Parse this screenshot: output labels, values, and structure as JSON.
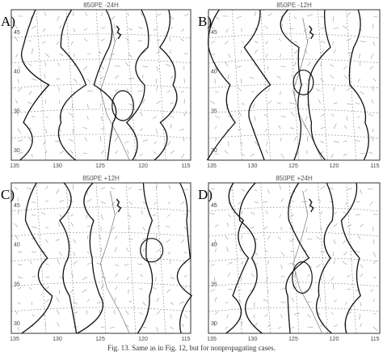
{
  "panels": [
    {
      "label": "A)",
      "title": "850PE -24H",
      "xticks": [
        135,
        130,
        125,
        120,
        115
      ],
      "yticks": [
        45,
        40,
        35,
        30
      ]
    },
    {
      "label": "B)",
      "title": "850PE -12H",
      "xticks": [
        135,
        130,
        125,
        120,
        115
      ],
      "yticks": [
        45,
        40,
        35,
        30
      ]
    },
    {
      "label": "C)",
      "title": "850PE +12H",
      "xticks": [
        135,
        130,
        125,
        120,
        115
      ],
      "yticks": [
        45,
        40,
        35,
        30
      ]
    },
    {
      "label": "D)",
      "title": "850PE +24H",
      "xticks": [
        135,
        130,
        125,
        120,
        115
      ],
      "yticks": [
        45,
        40,
        35,
        30
      ]
    }
  ],
  "caption": "Fig. 13. Same as in Fig. 12, but for nonpropagating cases."
}
